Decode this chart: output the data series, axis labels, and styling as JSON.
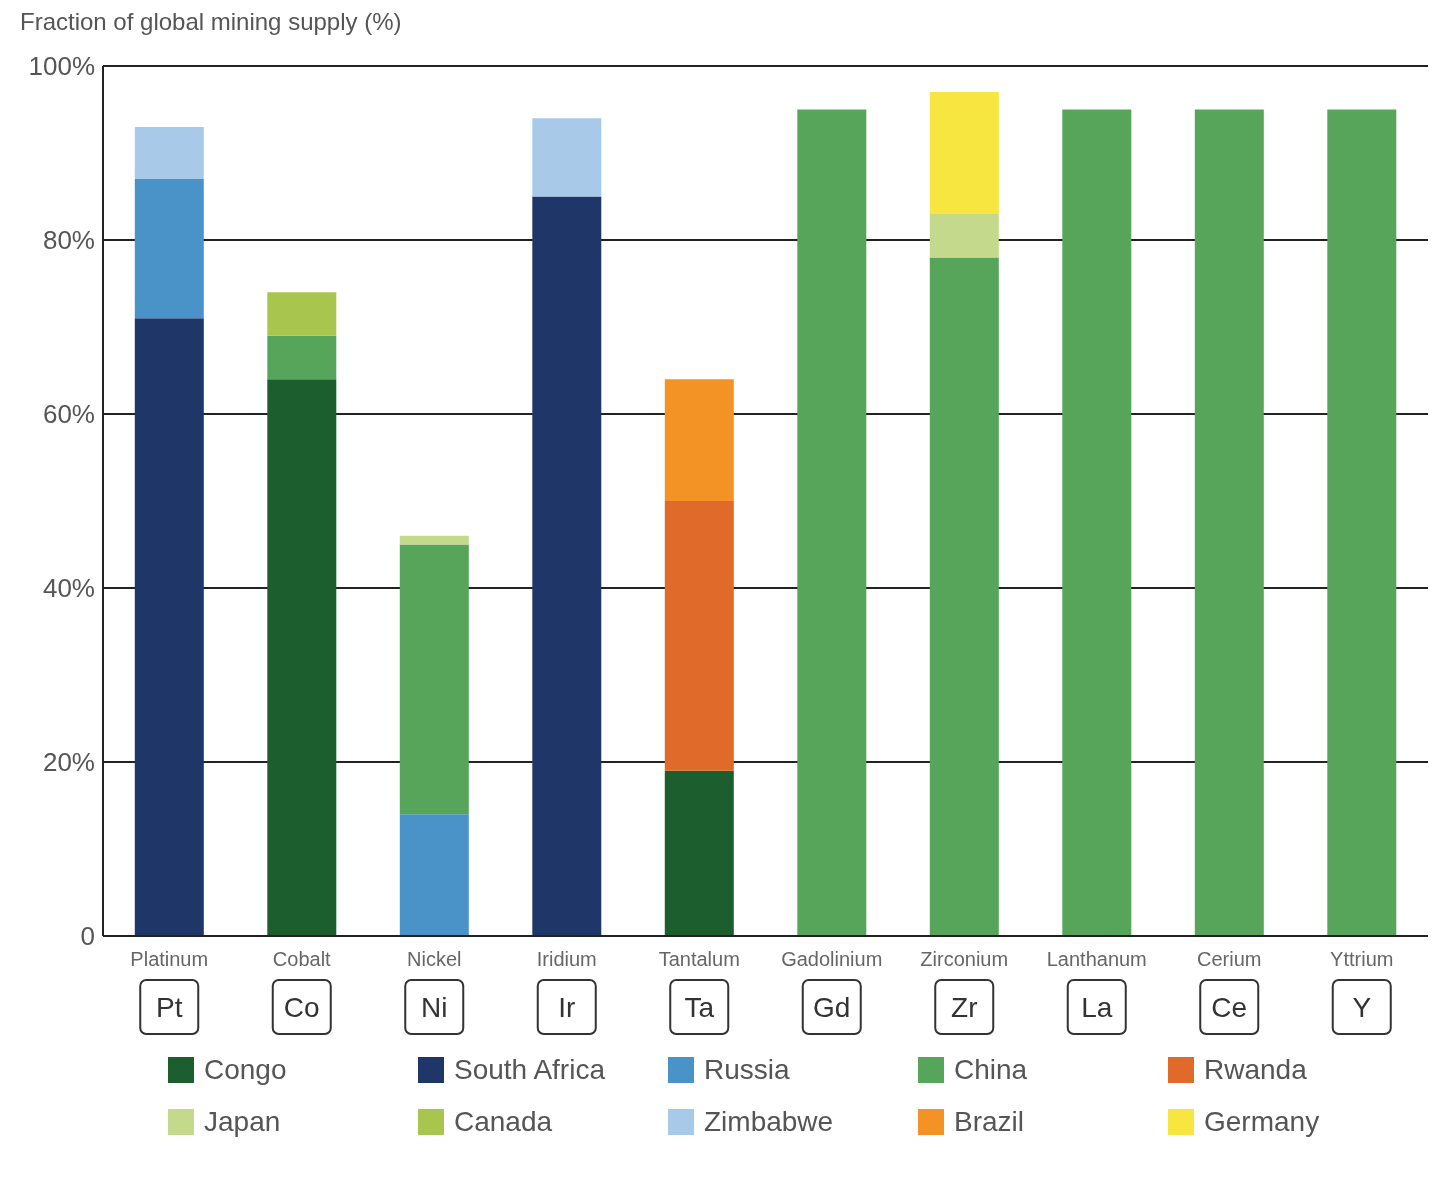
{
  "chart_data": {
    "type": "bar",
    "ylabel": "Fraction of global mining supply (%)",
    "categories": [
      "Platinum\nPt",
      "Cobalt\nCo",
      "Nickel\nNi",
      "Iridium\nIr",
      "Tantalum\nTa",
      "Gadolinium\nGd",
      "Zirconium\nZr",
      "Lanthanum\nLa",
      "Cerium\nCe",
      "Yttrium\nY"
    ],
    "stacked": true,
    "series": [
      {
        "name": "Congo",
        "color": "#1d5e2f",
        "values": [
          null,
          64,
          null,
          null,
          19,
          null,
          null,
          null,
          null,
          null
        ]
      },
      {
        "name": "South Africa",
        "color": "#1e3768",
        "values": [
          71,
          null,
          null,
          85,
          null,
          null,
          null,
          null,
          null,
          null
        ]
      },
      {
        "name": "Russia",
        "color": "#4a93c9",
        "values": [
          16,
          null,
          14,
          null,
          null,
          null,
          null,
          null,
          null,
          null
        ]
      },
      {
        "name": "China",
        "color": "#57a55a",
        "values": [
          null,
          5,
          31,
          null,
          null,
          95,
          78,
          95,
          95,
          95
        ]
      },
      {
        "name": "Rwanda",
        "color": "#e06a2a",
        "values": [
          null,
          null,
          null,
          null,
          31,
          null,
          null,
          null,
          null,
          null
        ]
      },
      {
        "name": "Japan",
        "color": "#c4d98c",
        "values": [
          null,
          null,
          1,
          null,
          null,
          null,
          5,
          null,
          null,
          null
        ]
      },
      {
        "name": "Canada",
        "color": "#a8c64e",
        "values": [
          null,
          5,
          null,
          null,
          null,
          null,
          null,
          null,
          null,
          null
        ]
      },
      {
        "name": "Zimbabwe",
        "color": "#a9c9e8",
        "values": [
          6,
          null,
          null,
          9,
          null,
          null,
          null,
          null,
          null,
          null
        ]
      },
      {
        "name": "Brazil",
        "color": "#f39325",
        "values": [
          null,
          null,
          null,
          null,
          14,
          null,
          null,
          null,
          null,
          null
        ]
      },
      {
        "name": "Germany",
        "color": "#f7e540",
        "values": [
          null,
          null,
          null,
          null,
          null,
          null,
          14,
          null,
          null,
          null
        ]
      }
    ],
    "ylim": [
      0,
      100
    ],
    "yticks": [
      {
        "value": 0,
        "label": "0"
      },
      {
        "value": 20,
        "label": "20%"
      },
      {
        "value": 40,
        "label": "40%"
      },
      {
        "value": 60,
        "label": "60%"
      },
      {
        "value": 80,
        "label": "80%"
      },
      {
        "value": 100,
        "label": "100%"
      }
    ],
    "grid": "y",
    "legend": "bottom"
  }
}
